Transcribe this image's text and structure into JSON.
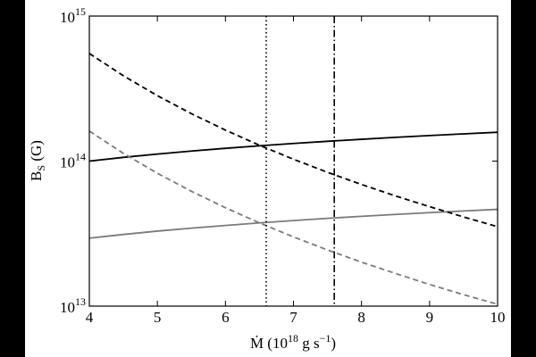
{
  "chart_data": {
    "type": "line",
    "xlabel": [
      "Ṁ (10",
      "18",
      " g s",
      "−1",
      ")"
    ],
    "ylabel": [
      "B",
      "S",
      " (G)"
    ],
    "x": [
      4,
      4.5,
      5,
      5.5,
      6,
      6.5,
      7,
      7.5,
      8,
      8.5,
      9,
      9.5,
      10
    ],
    "series": [
      {
        "color": "#000000",
        "dash": "solid",
        "values": [
          100000000000000.0,
          106100000000000.0,
          111800000000000.0,
          117300000000000.0,
          122500000000000.0,
          127500000000000.0,
          132300000000000.0,
          136900000000000.0,
          141400000000000.0,
          145800000000000.0,
          150000000000000.0,
          154100000000000.0,
          158100000000000.0
        ]
      },
      {
        "color": "#7a7a7a",
        "dash": "solid",
        "values": [
          29400000000000.0,
          31200000000000.0,
          32900000000000.0,
          34500000000000.0,
          36000000000000.0,
          37500000000000.0,
          38900000000000.0,
          40300000000000.0,
          41600000000000.0,
          42900000000000.0,
          44100000000000.0,
          45300000000000.0,
          46500000000000.0
        ]
      },
      {
        "color": "#000000",
        "dash": "dashed",
        "values": [
          552000000000000.0,
          387700000000000.0,
          282600000000000.0,
          212300000000000.0,
          163600000000000.0,
          128600000000000.0,
          103000000000000.0,
          83700000000000.0,
          69000000000000.0,
          57500000000000.0,
          48500000000000.0,
          41200000000000.0,
          35300000000000.0
        ]
      },
      {
        "color": "#7a7a7a",
        "dash": "dashed",
        "values": [
          161000000000000.0,
          113100000000000.0,
          82400000000000.0,
          61900000000000.0,
          47700000000000.0,
          37500000000000.0,
          30000000000000.0,
          24400000000000.0,
          20100000000000.0,
          16800000000000.0,
          14100000000000.0,
          12000000000000.0,
          10300000000000.0
        ]
      }
    ],
    "vlines": [
      {
        "x": 6.6,
        "color": "#000000",
        "dash": "dotted"
      },
      {
        "x": 7.6,
        "color": "#000000",
        "dash": "dashdot"
      }
    ],
    "xlim": [
      4,
      10
    ],
    "xticks": [
      4,
      5,
      6,
      7,
      8,
      9,
      10
    ],
    "ylim": [
      10000000000000.0,
      1000000000000000.0
    ],
    "yscale": "log",
    "yticks": [
      {
        "value": 10000000000000.0,
        "label": [
          "10",
          "13"
        ]
      },
      {
        "value": 100000000000000.0,
        "label": [
          "10",
          "14"
        ]
      },
      {
        "value": 1000000000000000.0,
        "label": [
          "10",
          "15"
        ]
      }
    ]
  }
}
